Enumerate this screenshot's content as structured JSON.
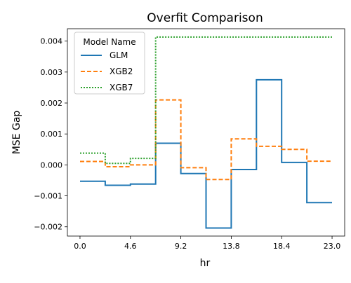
{
  "chart_data": {
    "type": "line",
    "drawstyle": "steps",
    "title": "Overfit Comparison",
    "xlabel": "hr",
    "ylabel": "MSE Gap",
    "xlim": [
      -1.15,
      24.15
    ],
    "ylim": [
      -0.0023,
      0.0044
    ],
    "xticks": [
      0.0,
      4.6,
      9.2,
      13.8,
      18.4,
      23.0
    ],
    "xtick_labels": [
      "0.0",
      "4.6",
      "9.2",
      "13.8",
      "18.4",
      "23.0"
    ],
    "yticks": [
      -0.002,
      -0.001,
      0.0,
      0.001,
      0.002,
      0.003,
      0.004
    ],
    "ytick_labels": [
      "−0.002",
      "−0.001",
      "0.000",
      "0.001",
      "0.002",
      "0.003",
      "0.004"
    ],
    "grid": false,
    "legend": {
      "title": "Model Name",
      "placement": "top-left"
    },
    "x_edges": [
      0.0,
      2.3,
      4.6,
      6.9,
      9.2,
      11.5,
      13.8,
      16.1,
      18.4,
      20.7,
      23.0
    ],
    "series": [
      {
        "name": "GLM",
        "color": "#1f77b4",
        "dash": "solid",
        "values": [
          -0.00053,
          -0.00066,
          -0.00062,
          0.0007,
          -0.00028,
          -0.00204,
          -0.00015,
          0.00275,
          8e-05,
          -0.00122
        ]
      },
      {
        "name": "XGB2",
        "color": "#ff7f0e",
        "dash": "dashed",
        "values": [
          0.00011,
          -6e-05,
          0.0,
          0.0021,
          -9e-05,
          -0.00047,
          0.00084,
          0.0006,
          0.0005,
          0.00012
        ]
      },
      {
        "name": "XGB7",
        "color": "#2ca02c",
        "dash": "dotted",
        "values": [
          0.00038,
          5e-05,
          0.00021,
          0.00413,
          0.00413,
          0.00413,
          0.00413,
          0.00413,
          0.00413,
          0.00413
        ]
      }
    ]
  }
}
